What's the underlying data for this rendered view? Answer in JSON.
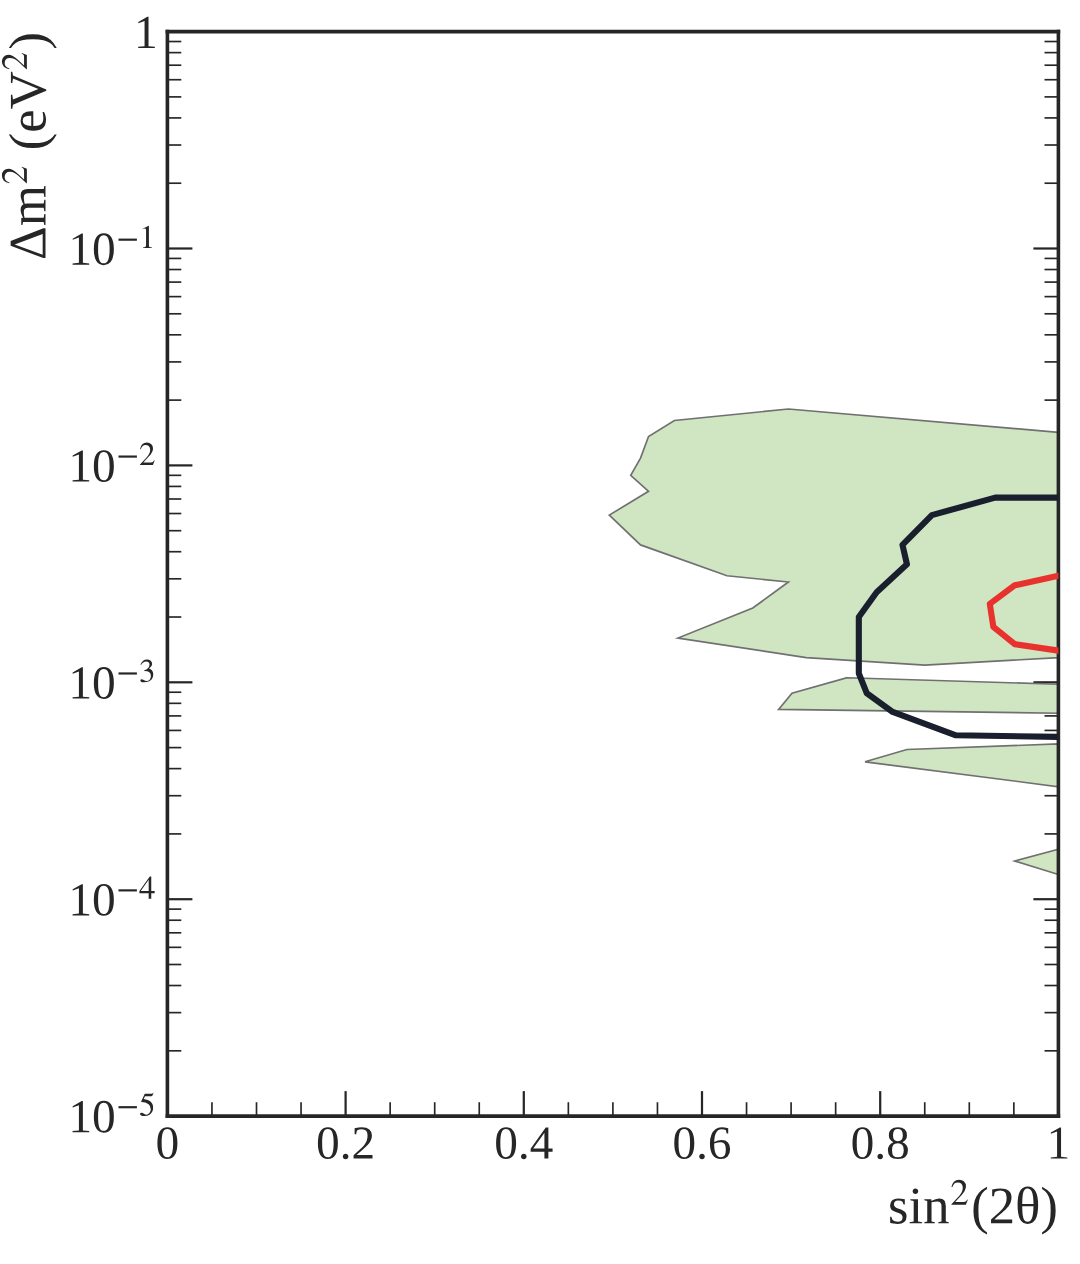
{
  "chart_data": {
    "type": "area",
    "xlabel": "sin$^{2}$(2θ)",
    "ylabel": "Δm$^{2}$ (eV$^{2}$)",
    "log": "y",
    "xlim": [
      0,
      1
    ],
    "ylim": [
      1e-05,
      1
    ],
    "xticks": [
      0,
      0.2,
      0.4,
      0.6,
      0.8,
      1
    ],
    "yticks": [
      {
        "value": 1e-05,
        "label": "10$^{−5}$"
      },
      {
        "value": 0.0001,
        "label": "10$^{−4}$"
      },
      {
        "value": 0.001,
        "label": "10$^{−3}$"
      },
      {
        "value": 0.01,
        "label": "10$^{−2}$"
      },
      {
        "value": 0.1,
        "label": "10$^{−1}$"
      },
      1
    ],
    "grid": false,
    "legend": false,
    "series": [
      {
        "color": "#d0e6c2",
        "x": [
          1.0,
          0.697,
          0.569,
          0.54,
          0.531,
          0.52,
          0.54,
          0.496,
          0.531,
          0.628,
          0.697,
          0.657,
          0.573,
          0.717,
          0.85,
          1.0,
          null,
          0.763,
          1.0,
          1.0,
          0.686,
          0.701,
          null,
          0.83,
          1.0,
          1.0,
          0.783,
          null,
          0.951,
          1.0,
          1.0
        ],
        "values": [
          0.0142,
          0.0182,
          0.0161,
          0.0136,
          0.0108,
          0.009,
          0.0076,
          0.0059,
          0.0043,
          0.0031,
          0.0029,
          0.0022,
          0.0016,
          0.0013,
          0.0012,
          0.0013,
          null,
          0.00105,
          0.00098,
          0.00072,
          0.00075,
          0.00089,
          null,
          0.00049,
          0.00052,
          0.00033,
          0.00043,
          null,
          0.00015,
          0.00017,
          0.00013
        ]
      },
      {
        "type": "line",
        "color": "#1a1f2e",
        "x": [
          1.0,
          0.929,
          0.858,
          0.825,
          0.83,
          0.796,
          0.776,
          0.776,
          0.785,
          0.814,
          0.885,
          1.0
        ],
        "values": [
          0.0071,
          0.0071,
          0.0059,
          0.0043,
          0.0035,
          0.0026,
          0.002,
          0.0011,
          0.00089,
          0.00073,
          0.00057,
          0.00056
        ]
      },
      {
        "type": "line",
        "color": "#e8322d",
        "x": [
          1.0,
          0.951,
          0.923,
          0.927,
          0.951,
          1.0
        ],
        "values": [
          0.0031,
          0.0028,
          0.0023,
          0.0018,
          0.0015,
          0.0014
        ]
      }
    ]
  }
}
